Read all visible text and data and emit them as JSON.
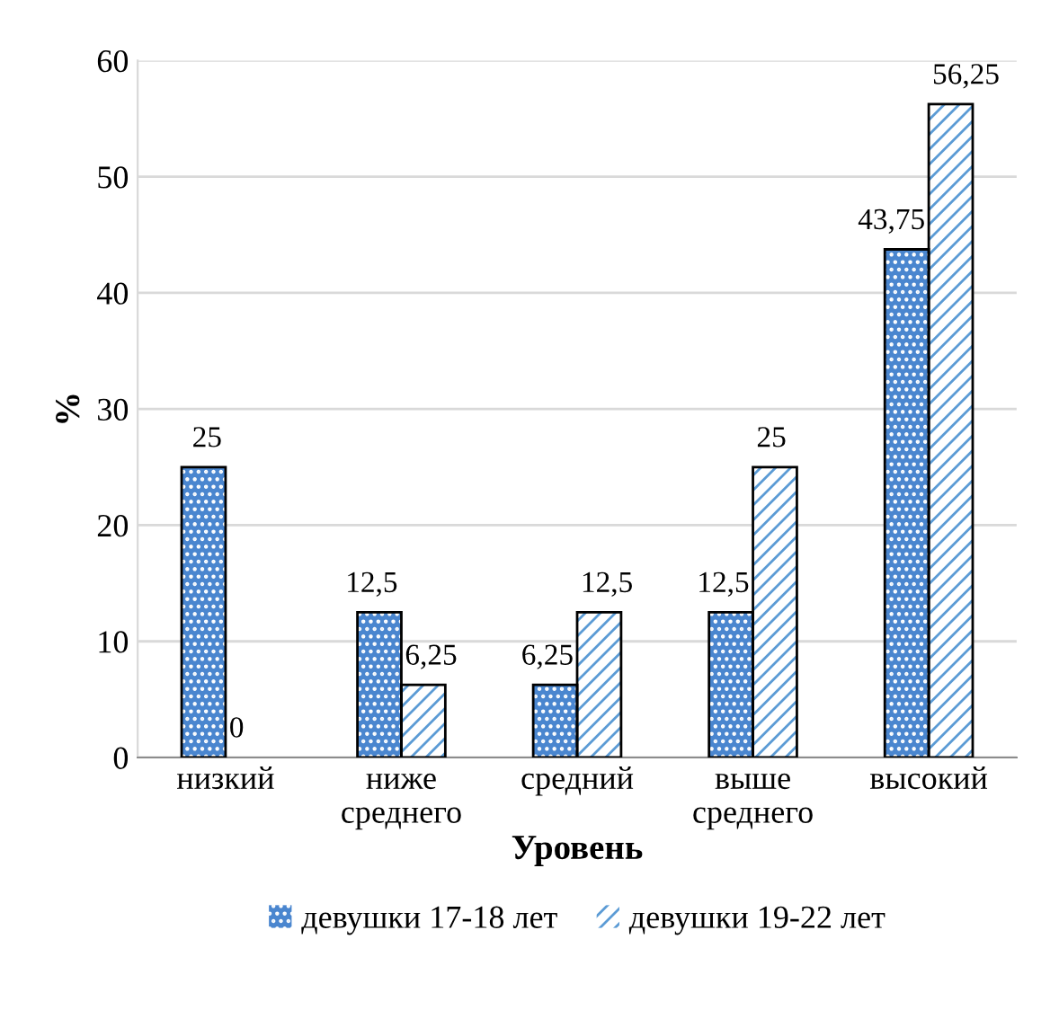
{
  "chart_data": {
    "type": "bar",
    "categories": [
      "низкий",
      "ниже\nсреднего",
      "средний",
      "выше\nсреднего",
      "высокий"
    ],
    "xlabel": "Уровень",
    "ylabel": "%",
    "series": [
      {
        "name": "девушки 17-18 лет",
        "color": "#4a86cf",
        "values": [
          25,
          12.5,
          6.25,
          12.5,
          43.75
        ],
        "value_labels": [
          "25",
          "12,5",
          "6,25",
          "12,5",
          "43,75"
        ]
      },
      {
        "name": "девушки 19-22 лет",
        "color": "#5b9bd5",
        "values": [
          0,
          6.25,
          12.5,
          25,
          56.25
        ],
        "value_labels": [
          "0",
          "6,25",
          "12,5",
          "25",
          "56,25"
        ]
      }
    ],
    "ylim": [
      0,
      60
    ],
    "yticks": [
      0,
      10,
      20,
      30,
      40,
      50,
      60
    ],
    "grid": "y",
    "legend": "bottom"
  }
}
